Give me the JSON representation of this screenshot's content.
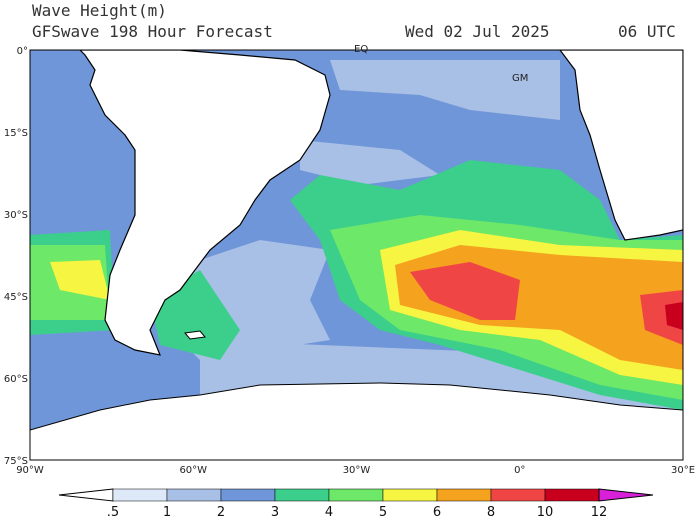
{
  "header": {
    "title": "Wave Height(m)",
    "subtitle": "GFSwave 198 Hour Forecast",
    "date": "Wed 02 Jul 2025",
    "time": "06 UTC"
  },
  "lat_labels": [
    "0°",
    "15°S",
    "30°S",
    "45°S",
    "60°S",
    "75°S"
  ],
  "lon_labels": [
    "90°W",
    "60°W",
    "30°W",
    "0°",
    "30°E"
  ],
  "markers": {
    "equator": "EQ",
    "meridian": "GM"
  },
  "colorbar": {
    "ticks": [
      ".5",
      "1",
      "2",
      "3",
      "4",
      "5",
      "6",
      "8",
      "10",
      "12"
    ],
    "colors": [
      "#ffffff",
      "#dde8f8",
      "#a8bfe6",
      "#6f96d8",
      "#3ccf8c",
      "#6de868",
      "#f5f542",
      "#f5a21e",
      "#f04545",
      "#c8001e",
      "#d820d8"
    ]
  }
}
